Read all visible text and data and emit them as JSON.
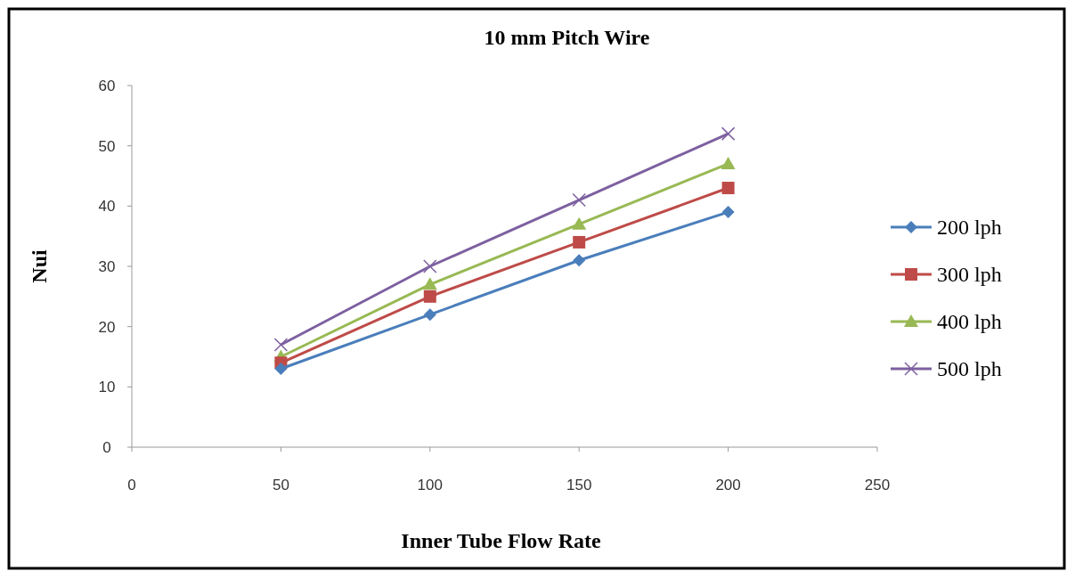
{
  "chart_data": {
    "type": "line",
    "title": "10 mm Pitch Wire",
    "xlabel": "Inner Tube Flow Rate",
    "ylabel": "Nui",
    "x": [
      50,
      100,
      150,
      200
    ],
    "series": [
      {
        "name": "200 lph",
        "color": "#4a7ebb",
        "marker": "diamond",
        "values": [
          13,
          22,
          31,
          39
        ]
      },
      {
        "name": "300 lph",
        "color": "#be4b48",
        "marker": "square",
        "values": [
          14,
          25,
          34,
          43
        ]
      },
      {
        "name": "400 lph",
        "color": "#98b954",
        "marker": "triangle",
        "values": [
          15,
          27,
          37,
          47
        ]
      },
      {
        "name": "500 lph",
        "color": "#7d60a0",
        "marker": "cross",
        "values": [
          17,
          30,
          41,
          52
        ]
      }
    ],
    "xlim": [
      0,
      250
    ],
    "xticks": [
      0,
      50,
      100,
      150,
      200,
      250
    ],
    "ylim": [
      0,
      60
    ],
    "yticks": [
      0,
      10,
      20,
      30,
      40,
      50,
      60
    ],
    "grid": false,
    "legend": "right"
  }
}
